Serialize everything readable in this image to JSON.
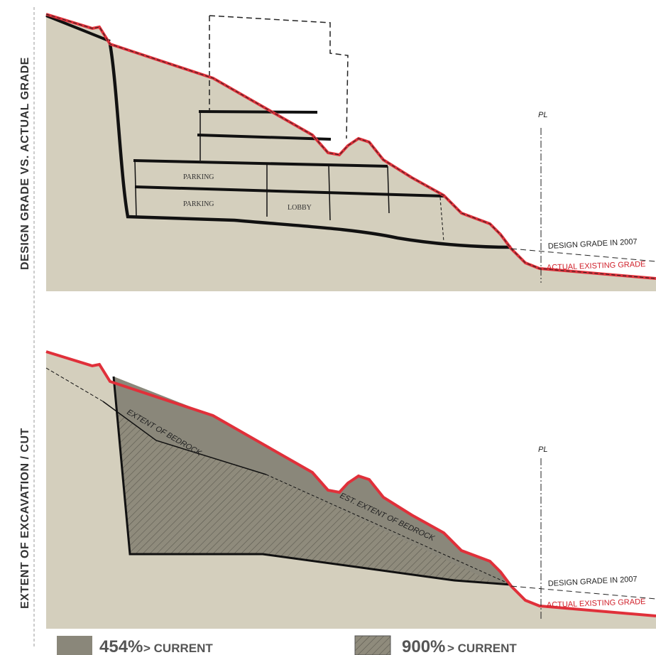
{
  "panels": [
    {
      "side_label": "DESIGN GRADE VS. ACTUAL GRADE",
      "pl": "PL",
      "design_grade": "DESIGN GRADE IN 2007",
      "actual_grade": "ACTUAL EXISTING GRADE",
      "sketch_labels": [
        "PARKING",
        "PARKING",
        "LOBBY"
      ]
    },
    {
      "side_label": "EXTENT OF EXCAVATION / CUT",
      "pl": "PL",
      "design_grade": "DESIGN GRADE IN 2007",
      "actual_grade": "ACTUAL EXISTING GRADE",
      "bedrock": "EXTENT   OF BEDROCK",
      "est_bedrock": "EST. EXTENT OF BEDROCK"
    }
  ],
  "legend": [
    {
      "value": "454%",
      "text": "> CURRENT"
    },
    {
      "value": "900%",
      "text": "> CURRENT"
    }
  ]
}
